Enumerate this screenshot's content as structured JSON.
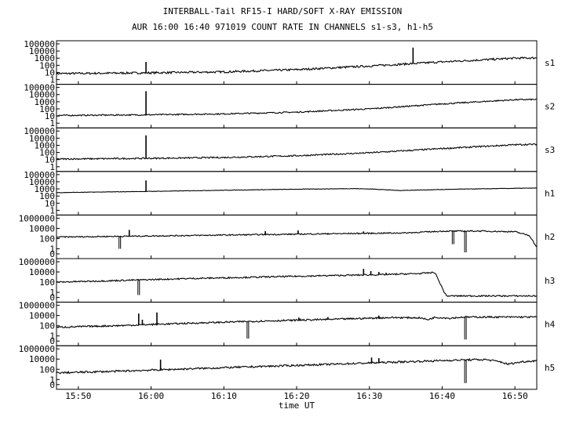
{
  "chart_data": {
    "type": "line",
    "title": "INTERBALL-Tail RF15-I HARD/SOFT X-RAY EMISSION",
    "subtitle": "AUR 16:00 16:40 971019  COUNT RATE IN CHANNELS s1-s3, h1-h5",
    "xlabel": "time UT",
    "x_ticks": [
      "15:50",
      "16:00",
      "16:10",
      "16:20",
      "16:30",
      "16:40",
      "16:50"
    ],
    "xlim": [
      "15:47",
      "16:53"
    ],
    "y_scale": "log",
    "grid": false,
    "panels": [
      {
        "name": "s1",
        "y_ticks": [
          "1",
          "10",
          "100",
          "1000",
          "10000",
          "100000"
        ],
        "ylim": [
          1,
          100000
        ],
        "baseline": [
          [
            "15:47",
            7
          ],
          [
            "16:00",
            9
          ],
          [
            "16:10",
            12
          ],
          [
            "16:20",
            25
          ],
          [
            "16:30",
            80
          ],
          [
            "16:40",
            300
          ],
          [
            "16:50",
            1000
          ],
          [
            "16:53",
            1100
          ]
        ],
        "spikes": [
          [
            "15:59.3",
            300
          ],
          [
            "16:36.0",
            30000
          ]
        ],
        "dips": [],
        "noise": 0.14
      },
      {
        "name": "s2",
        "y_ticks": [
          "1",
          "10",
          "100",
          "1000",
          "10000",
          "100000"
        ],
        "ylim": [
          1,
          100000
        ],
        "baseline": [
          [
            "15:47",
            12
          ],
          [
            "16:00",
            15
          ],
          [
            "16:10",
            20
          ],
          [
            "16:20",
            35
          ],
          [
            "16:30",
            100
          ],
          [
            "16:40",
            500
          ],
          [
            "16:50",
            1900
          ],
          [
            "16:53",
            2100
          ]
        ],
        "spikes": [
          [
            "15:59.3",
            30000
          ]
        ],
        "dips": [],
        "noise": 0.09
      },
      {
        "name": "s3",
        "y_ticks": [
          "1",
          "10",
          "100",
          "1000",
          "10000",
          "100000"
        ],
        "ylim": [
          1,
          100000
        ],
        "baseline": [
          [
            "15:47",
            12
          ],
          [
            "16:00",
            15
          ],
          [
            "16:10",
            20
          ],
          [
            "16:20",
            35
          ],
          [
            "16:30",
            90
          ],
          [
            "16:40",
            350
          ],
          [
            "16:50",
            1200
          ],
          [
            "16:53",
            1400
          ]
        ],
        "spikes": [
          [
            "15:59.3",
            25000
          ]
        ],
        "dips": [],
        "noise": 0.1
      },
      {
        "name": "h1",
        "y_ticks": [
          "1",
          "10",
          "100",
          "1000",
          "10000",
          "100000"
        ],
        "ylim": [
          1,
          100000
        ],
        "baseline": [
          [
            "15:47",
            300
          ],
          [
            "16:00",
            450
          ],
          [
            "16:10",
            650
          ],
          [
            "16:20",
            900
          ],
          [
            "16:28",
            1100
          ],
          [
            "16:31",
            900
          ],
          [
            "16:34",
            600
          ],
          [
            "16:37",
            700
          ],
          [
            "16:42",
            900
          ],
          [
            "16:50",
            1200
          ],
          [
            "16:53",
            1300
          ]
        ],
        "spikes": [
          [
            "15:59.3",
            15000
          ]
        ],
        "dips": [],
        "noise": 0.03
      },
      {
        "name": "h2",
        "y_ticks": [
          "0",
          "1",
          "100",
          "10000",
          "1000000"
        ],
        "ylim": [
          0.1,
          1000000
        ],
        "baseline": [
          [
            "15:47",
            200
          ],
          [
            "15:56",
            280
          ],
          [
            "16:05",
            400
          ],
          [
            "16:15",
            600
          ],
          [
            "16:25",
            900
          ],
          [
            "16:35",
            1300
          ],
          [
            "16:40",
            2800
          ],
          [
            "16:45",
            3000
          ],
          [
            "16:50",
            2200
          ],
          [
            "16:52",
            400
          ],
          [
            "16:53",
            2
          ]
        ],
        "spikes": [
          [
            "15:57.0",
            5000
          ],
          [
            "16:15.7",
            3000
          ],
          [
            "16:20.2",
            4000
          ],
          [
            "16:24.3",
            1200
          ],
          [
            "16:29.2",
            2500
          ]
        ],
        "dips": [
          [
            "15:55.7",
            1
          ],
          [
            "16:41.5",
            8
          ],
          [
            "16:43.2",
            0.2
          ]
        ],
        "noise": 0.12
      },
      {
        "name": "h3",
        "y_ticks": [
          "0",
          "1",
          "100",
          "10000",
          "1000000"
        ],
        "ylim": [
          0.1,
          1000000
        ],
        "baseline": [
          [
            "15:47",
            100
          ],
          [
            "15:55",
            200
          ],
          [
            "16:05",
            500
          ],
          [
            "16:15",
            1000
          ],
          [
            "16:25",
            2000
          ],
          [
            "16:32",
            3000
          ],
          [
            "16:37",
            5000
          ],
          [
            "16:39",
            8000
          ],
          [
            "16:40.3",
            1
          ],
          [
            "16:40.6",
            0.2
          ],
          [
            "16:53",
            0.2
          ]
        ],
        "spikes": [
          [
            "16:29.2",
            40000
          ],
          [
            "16:30.2",
            15000
          ],
          [
            "16:31.3",
            10000
          ],
          [
            "16:32.3",
            7000
          ],
          [
            "16:34.3",
            6000
          ]
        ],
        "dips": [
          [
            "15:58.3",
            0.3
          ]
        ],
        "noise": 0.14
      },
      {
        "name": "h4",
        "y_ticks": [
          "0",
          "1",
          "100",
          "10000",
          "1000000"
        ],
        "ylim": [
          0.1,
          1000000
        ],
        "baseline": [
          [
            "15:47",
            50
          ],
          [
            "15:55",
            100
          ],
          [
            "16:05",
            300
          ],
          [
            "16:15",
            800
          ],
          [
            "16:25",
            1800
          ],
          [
            "16:33",
            4000
          ],
          [
            "16:37",
            3500
          ],
          [
            "16:38",
            1500
          ],
          [
            "16:39",
            4500
          ],
          [
            "16:41",
            3000
          ],
          [
            "16:43",
            5000
          ],
          [
            "16:49",
            5000
          ]
        ],
        "spikes": [
          [
            "15:58.3",
            25000
          ],
          [
            "15:58.8",
            1500
          ],
          [
            "16:00.8",
            40000
          ],
          [
            "16:20.3",
            4000
          ],
          [
            "16:20.5",
            2500
          ],
          [
            "16:24.3",
            5000
          ],
          [
            "16:31.3",
            10000
          ]
        ],
        "dips": [
          [
            "16:13.3",
            0.3
          ],
          [
            "16:43.2",
            0.2
          ]
        ],
        "noise": 0.16
      },
      {
        "name": "h5",
        "y_ticks": [
          "0",
          "1",
          "100",
          "10000",
          "1000000"
        ],
        "ylim": [
          0.1,
          1000000
        ],
        "baseline": [
          [
            "15:47",
            20
          ],
          [
            "15:55",
            40
          ],
          [
            "16:05",
            120
          ],
          [
            "16:15",
            350
          ],
          [
            "16:25",
            1000
          ],
          [
            "16:35",
            3000
          ],
          [
            "16:43",
            7000
          ],
          [
            "16:46",
            8000
          ],
          [
            "16:48",
            3000
          ],
          [
            "16:49",
            1000
          ],
          [
            "16:51",
            3000
          ],
          [
            "16:53",
            5000
          ]
        ],
        "spikes": [
          [
            "16:01.3",
            8000
          ],
          [
            "16:30.3",
            20000
          ],
          [
            "16:31.3",
            15000
          ]
        ],
        "dips": [
          [
            "16:43.2",
            0.2
          ]
        ],
        "noise": 0.18
      }
    ]
  }
}
